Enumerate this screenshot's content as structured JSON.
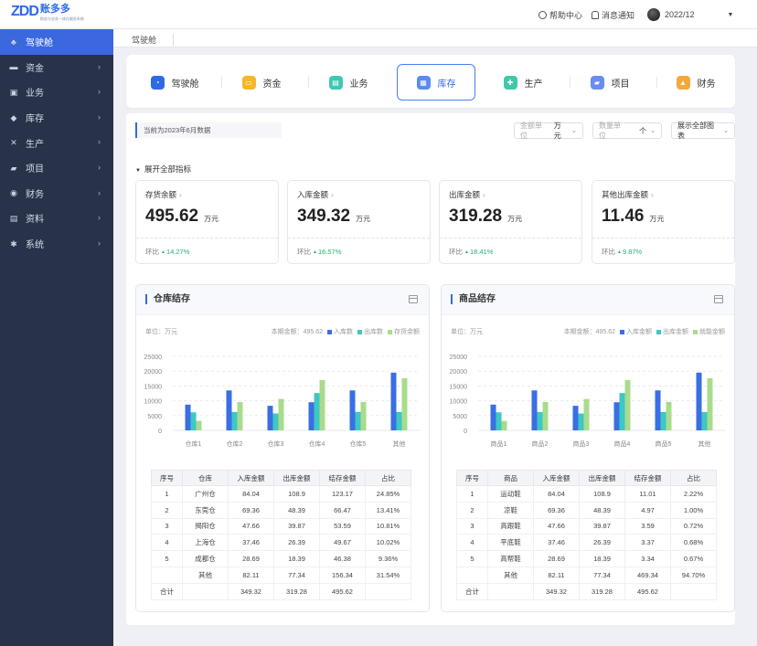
{
  "brand": {
    "mark": "ZDD",
    "name": "账多多",
    "sub": "财务与业务一体化服务系统"
  },
  "topbar": {
    "help": "帮助中心",
    "notice": "消息通知",
    "period": "2022/12"
  },
  "sidebar": {
    "items": [
      {
        "label": "驾驶舱",
        "icon": "cockpit-icon"
      },
      {
        "label": "资金",
        "icon": "wallet-icon"
      },
      {
        "label": "业务",
        "icon": "briefcase-icon"
      },
      {
        "label": "库存",
        "icon": "box-icon"
      },
      {
        "label": "生产",
        "icon": "tools-icon"
      },
      {
        "label": "项目",
        "icon": "folder-icon"
      },
      {
        "label": "财务",
        "icon": "money-bag-icon"
      },
      {
        "label": "资料",
        "icon": "document-icon"
      },
      {
        "label": "系统",
        "icon": "gear-icon"
      }
    ]
  },
  "tabs": {
    "current": "驾驶舱"
  },
  "modules": [
    {
      "label": "驾驶舱",
      "color": "#2f6ae6",
      "icon": "cockpit-icon"
    },
    {
      "label": "资金",
      "color": "#f5b52c",
      "icon": "wallet-icon"
    },
    {
      "label": "业务",
      "color": "#3ec8b4",
      "icon": "briefcase-icon"
    },
    {
      "label": "库存",
      "color": "#5b8af0",
      "icon": "box-icon"
    },
    {
      "label": "生产",
      "color": "#40c9a8",
      "icon": "tools-icon"
    },
    {
      "label": "项目",
      "color": "#6a8cef",
      "icon": "folder-icon"
    },
    {
      "label": "财务",
      "color": "#f4a93a",
      "icon": "money-bag-icon"
    }
  ],
  "filters": {
    "date_tag": "当前为2023年6月数据",
    "amount_placeholder": "金额单位",
    "amount_value": "万元",
    "qty_placeholder": "数量单位",
    "qty_value": "个",
    "show_all": "展示全部图表"
  },
  "expand_label": "展开全部指标",
  "kpis": [
    {
      "title": "存货余额",
      "value": "495.62",
      "unit": "万元",
      "ratio_label": "环比",
      "ratio": "14.27%"
    },
    {
      "title": "入库金额",
      "value": "349.32",
      "unit": "万元",
      "ratio_label": "环比",
      "ratio": "16.57%"
    },
    {
      "title": "出库金额",
      "value": "319.28",
      "unit": "万元",
      "ratio_label": "环比",
      "ratio": "18.41%"
    },
    {
      "title": "其他出库金额",
      "value": "11.46",
      "unit": "万元",
      "ratio_label": "环比",
      "ratio": "9.87%"
    }
  ],
  "colors": {
    "in": "#3a6fe3",
    "out": "#3ec7c4",
    "balance": "#a8dc8c"
  },
  "panels": [
    {
      "title": "仓库结存",
      "unit": "单位：万元",
      "legend": {
        "period": "本期金额：495.62",
        "in": "入库数",
        "out": "出库数",
        "balance": "存货余额"
      },
      "table": {
        "headers": [
          "序号",
          "仓库",
          "入库金额",
          "出库金额",
          "结存金额",
          "占比"
        ],
        "rows": [
          [
            "1",
            "广州仓",
            "84.04",
            "108.9",
            "123.17",
            "24.85%"
          ],
          [
            "2",
            "东莞仓",
            "69.36",
            "48.39",
            "66.47",
            "13.41%"
          ],
          [
            "3",
            "揭阳仓",
            "47.66",
            "39.87",
            "53.59",
            "10.81%"
          ],
          [
            "4",
            "上海仓",
            "37.46",
            "26.39",
            "49.67",
            "10.02%"
          ],
          [
            "5",
            "成都仓",
            "28.69",
            "18.39",
            "46.38",
            "9.36%"
          ],
          [
            "",
            "其他",
            "82.11",
            "77.34",
            "156.34",
            "31.54%"
          ],
          [
            "合计",
            "",
            "349.32",
            "319.28",
            "495.62",
            ""
          ]
        ]
      }
    },
    {
      "title": "商品结存",
      "unit": "单位：万元",
      "legend": {
        "period": "本期金额：495.62",
        "in": "入库金额",
        "out": "出库金额",
        "balance": "就能金额"
      },
      "table": {
        "headers": [
          "序号",
          "商品",
          "入库金额",
          "出库金额",
          "结存金额",
          "占比"
        ],
        "rows": [
          [
            "1",
            "运动鞋",
            "84.04",
            "108.9",
            "11.01",
            "2.22%"
          ],
          [
            "2",
            "凉鞋",
            "69.36",
            "48.39",
            "4.97",
            "1.00%"
          ],
          [
            "3",
            "高跟鞋",
            "47.66",
            "39.87",
            "3.59",
            "0.72%"
          ],
          [
            "4",
            "平底鞋",
            "37.46",
            "26.39",
            "3.37",
            "0.68%"
          ],
          [
            "5",
            "高帮鞋",
            "28.69",
            "18.39",
            "3.34",
            "0.67%"
          ],
          [
            "",
            "其他",
            "82.11",
            "77.34",
            "469.34",
            "94.70%"
          ],
          [
            "合计",
            "",
            "349.32",
            "319.28",
            "495.62",
            ""
          ]
        ]
      }
    }
  ],
  "chart_data": [
    {
      "type": "bar",
      "categories": [
        "仓库1",
        "仓库2",
        "仓库3",
        "仓库4",
        "仓库5",
        "其他"
      ],
      "ylim": [
        0,
        25000
      ],
      "yticks": [
        "0",
        "5000",
        "10000",
        "15000",
        "20000",
        "25000"
      ],
      "series": [
        {
          "name": "入库数",
          "values": [
            8700,
            13500,
            8300,
            9500,
            13500,
            19500
          ]
        },
        {
          "name": "出库数",
          "values": [
            6100,
            6200,
            5700,
            12600,
            6200,
            6200
          ]
        },
        {
          "name": "存货余额",
          "values": [
            3200,
            9600,
            10600,
            17000,
            9600,
            17600
          ]
        }
      ]
    },
    {
      "type": "bar",
      "categories": [
        "商品1",
        "商品2",
        "商品3",
        "商品4",
        "商品5",
        "其他"
      ],
      "ylim": [
        0,
        25000
      ],
      "yticks": [
        "0",
        "5000",
        "10000",
        "15000",
        "20000",
        "25000"
      ],
      "series": [
        {
          "name": "入库金额",
          "values": [
            8700,
            13500,
            8300,
            9500,
            13500,
            19500
          ]
        },
        {
          "name": "出库金额",
          "values": [
            6100,
            6200,
            5700,
            12600,
            6200,
            6200
          ]
        },
        {
          "name": "就能金额",
          "values": [
            3200,
            9600,
            10600,
            17000,
            9600,
            17600
          ]
        }
      ]
    }
  ]
}
